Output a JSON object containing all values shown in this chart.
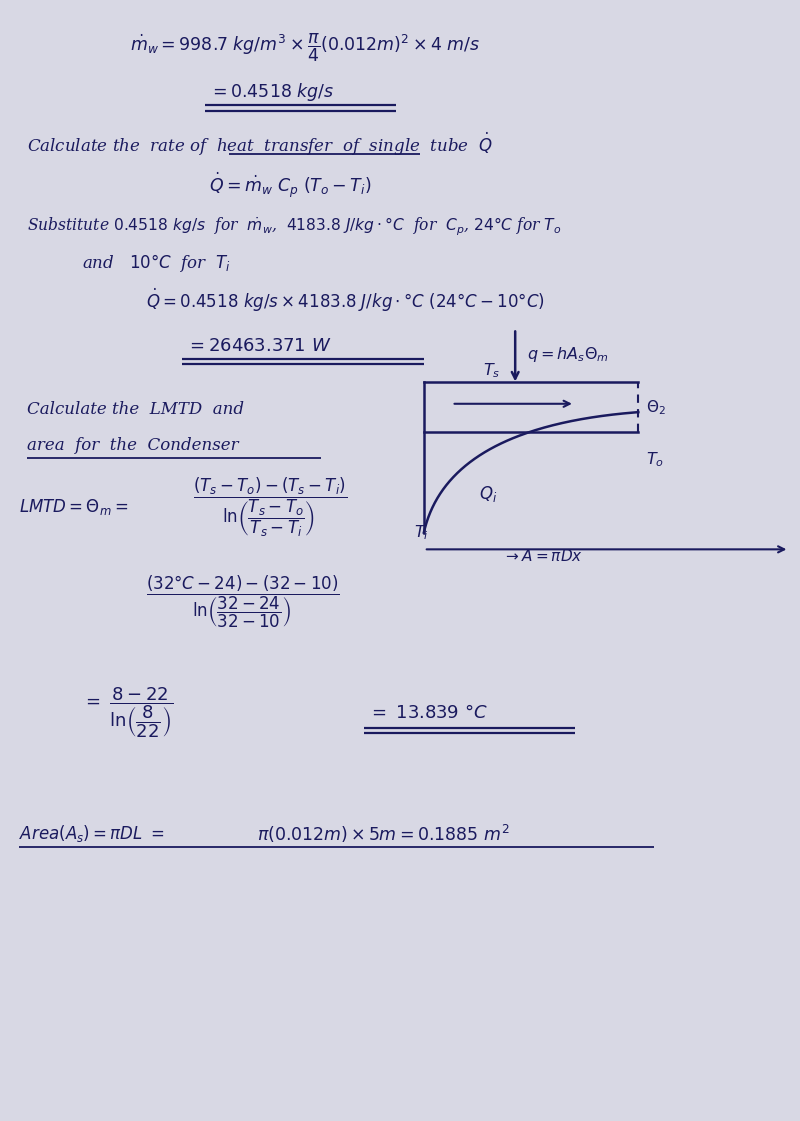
{
  "bg_color": "#d8d8e4",
  "text_color": "#1a1a5e",
  "fig_width": 8.0,
  "fig_height": 11.21,
  "dpi": 100,
  "content": {
    "line1": "$\\dot{m}_w = 998.7\\ kg/m^3 \\times \\dfrac{\\pi}{4}(0.012m)^2 \\times 4\\ m/s$",
    "line2": "$= 0.4518\\ kg/s$",
    "line3_a": "Calculate the  rate of  ",
    "line3_b": "heat  transfer",
    "line3_c": "  of  single  tube  $\\dot{Q}$",
    "line4": "$\\dot{Q} = \\dot{m}_w\\ C_p\\ (T_o - T_i)$",
    "line5": "Substitute $0.4518\\ kg/s$  for  $\\dot{m}_w$,  $4183.8\\ J/kg\\cdot°C$  for  $C_p$, $24°C$ for $T_o$",
    "line6": "and   $10°C$  for  $T_i$",
    "line7": "$\\dot{Q} = 0.4518\\ kg/s \\times 4183.8\\ J/kg\\cdot°C\\ (24°C - 10°C)$",
    "line8": "$= 26463.371\\ W$",
    "line9": "Calculate the  LMTD  and",
    "line10": "area  for  the  Condenser",
    "line11a": "$LMTD = \\Theta_m =$",
    "line11b": "$\\dfrac{(T_s - T_o) - (T_s - T_i)}{\\ln\\!\\left(\\dfrac{T_s - T_o}{T_s - T_i}\\right)}$",
    "line11c": "$Q_i$",
    "line12": "$\\dfrac{(32°C - 24) - (32 - 10)}{\\ln\\!\\left(\\dfrac{32 - 24}{32 - 10}\\right)}$",
    "line13a": "$=\\ \\dfrac{8 - 22}{\\ln\\!\\left(\\dfrac{8}{22}\\right)}$",
    "line13b": "$=\\ 13.839\\ °C$",
    "line14a": "$Area(A_s) = \\pi DL\\ =$",
    "line14b": "$\\pi(0.012m) \\times 5m = 0.1885\\ m^2$"
  }
}
